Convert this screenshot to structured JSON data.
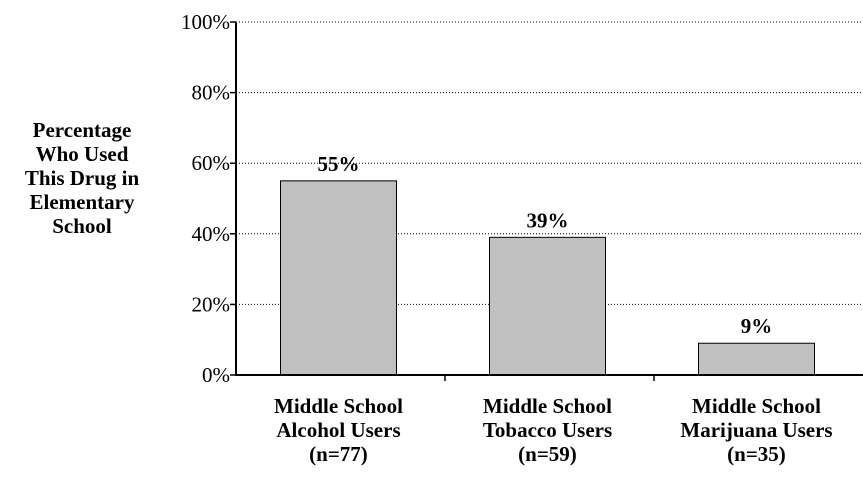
{
  "chart_data": {
    "type": "bar",
    "title": "",
    "ylabel": "Percentage\nWho Used\nThis Drug in\nElementary\nSchool",
    "xlabel": "",
    "ylim": [
      0,
      100
    ],
    "yticks": [
      0,
      20,
      40,
      60,
      80,
      100
    ],
    "ytick_labels": [
      "0%",
      "20%",
      "40%",
      "60%",
      "80%",
      "100%"
    ],
    "grid": "horizontal-dotted",
    "categories": [
      "Middle School\nAlcohol Users\n(n=77)",
      "Middle School\nTobacco Users\n(n=59)",
      "Middle School\nMarijuana Users\n(n=35)"
    ],
    "values": [
      55,
      39,
      9
    ],
    "data_labels": [
      "55%",
      "39%",
      "9%"
    ],
    "colors": {
      "bar_fill": "#c0c0c0",
      "bar_stroke": "#000000",
      "axis": "#000000",
      "grid": "#000000"
    }
  }
}
